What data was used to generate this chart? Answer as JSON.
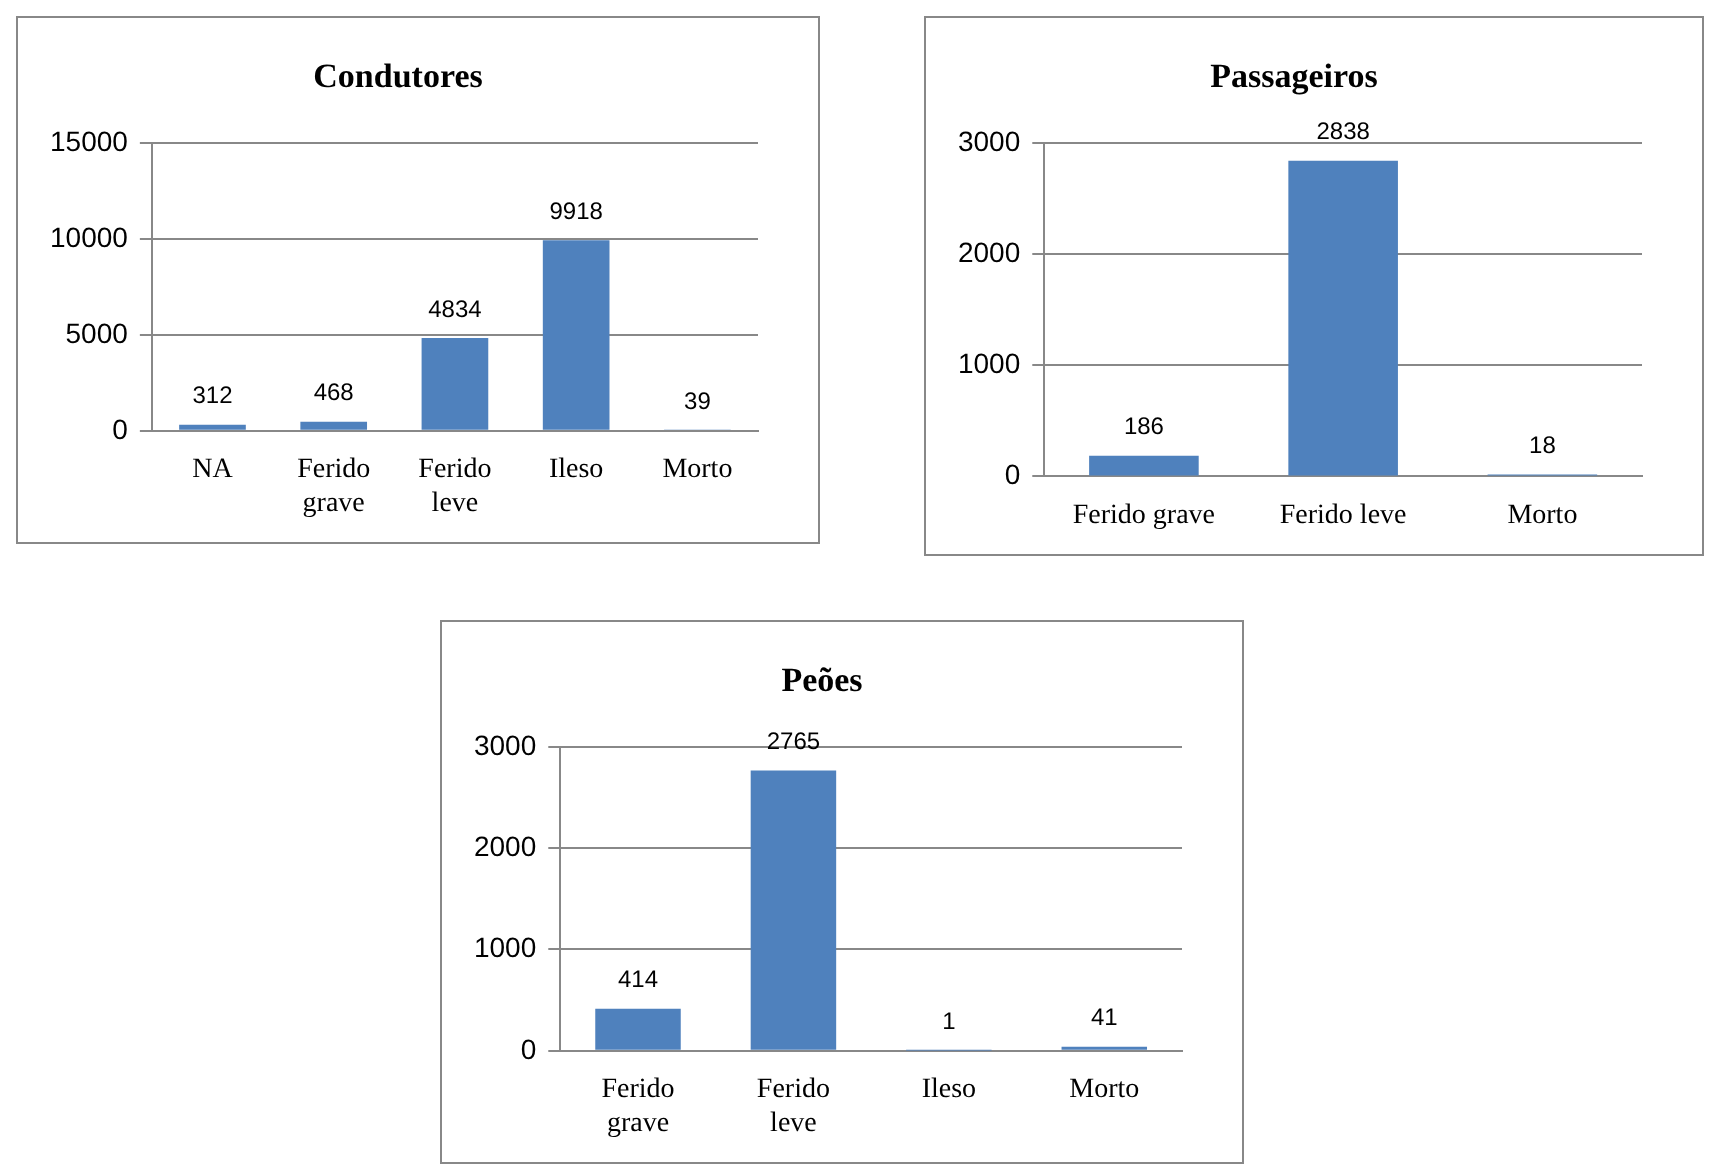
{
  "chart_data": [
    {
      "type": "bar",
      "title": "Condutores",
      "categories": [
        "NA",
        "Ferido grave",
        "Ferido leve",
        "Ileso",
        "Morto"
      ],
      "values": [
        312,
        468,
        4834,
        9918,
        39
      ],
      "color": "#4f81bd",
      "ylim": [
        0,
        15000
      ],
      "yticks": [
        0,
        5000,
        10000,
        15000
      ],
      "grid": "y",
      "legend": false,
      "data_labels": true
    },
    {
      "type": "bar",
      "title": "Passageiros",
      "categories": [
        "Ferido grave",
        "Ferido leve",
        "Morto"
      ],
      "values": [
        186,
        2838,
        18
      ],
      "color": "#4f81bd",
      "ylim": [
        0,
        3000
      ],
      "yticks": [
        0,
        1000,
        2000,
        3000
      ],
      "grid": "y",
      "legend": false,
      "data_labels": true
    },
    {
      "type": "bar",
      "title": "Peões",
      "categories": [
        "Ferido grave",
        "Ferido leve",
        "Ileso",
        "Morto"
      ],
      "values": [
        414,
        2765,
        1,
        41
      ],
      "color": "#4f81bd",
      "ylim": [
        0,
        3000
      ],
      "yticks": [
        0,
        1000,
        2000,
        3000
      ],
      "grid": "y",
      "legend": false,
      "data_labels": true
    }
  ]
}
